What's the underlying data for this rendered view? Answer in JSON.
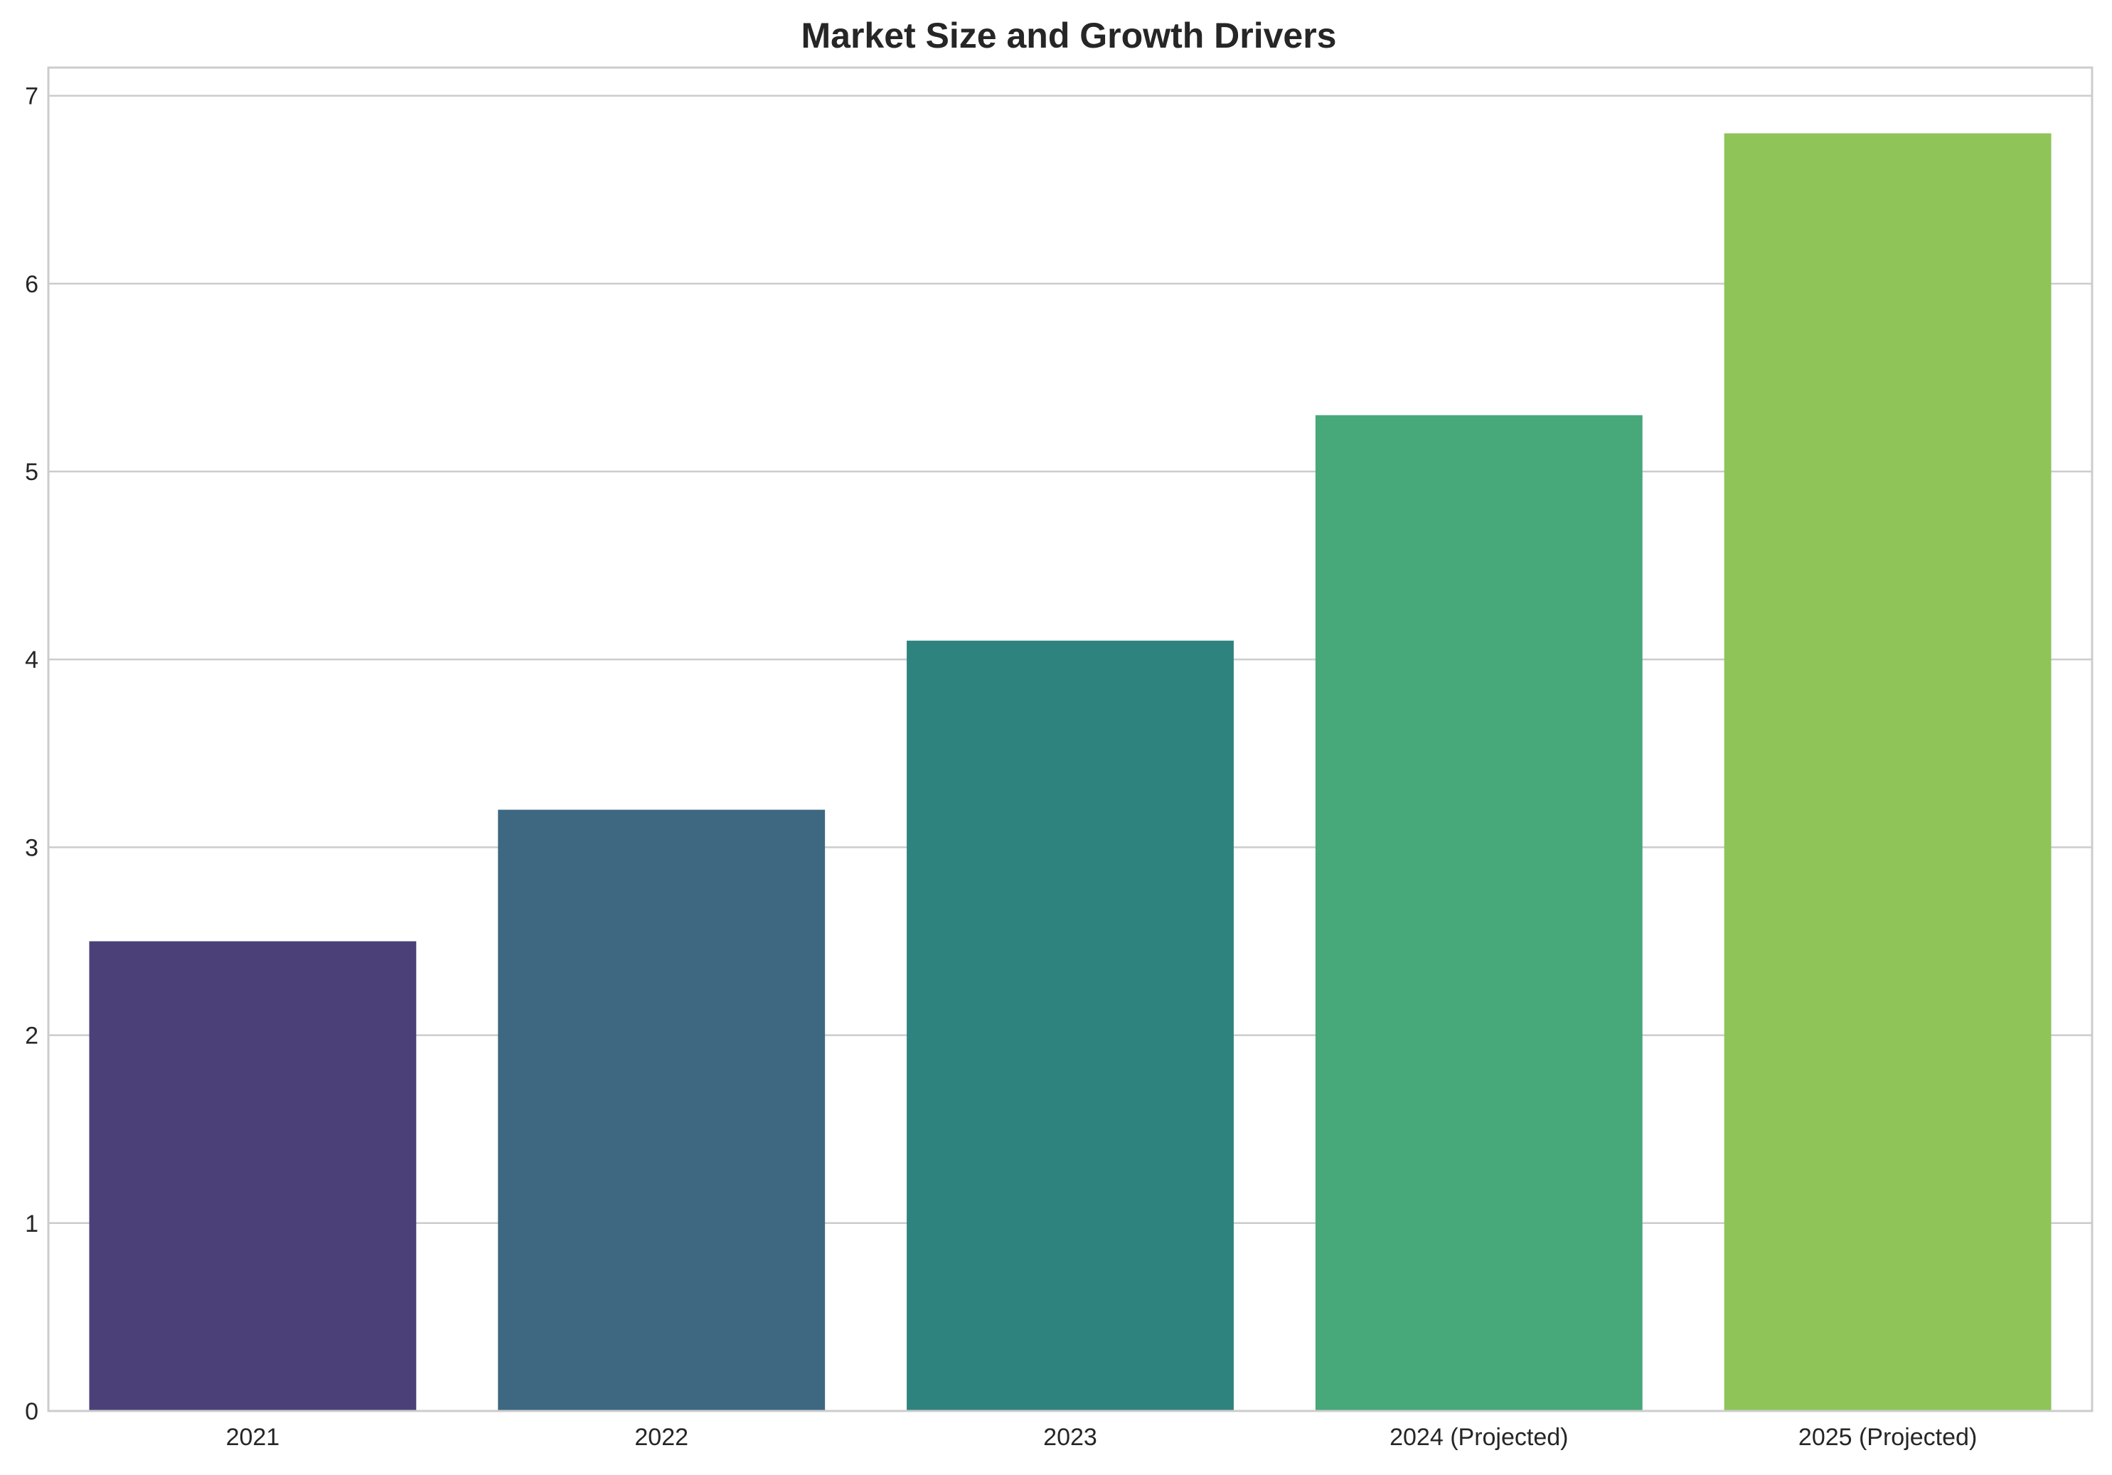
{
  "chart_data": {
    "type": "bar",
    "title": "Market Size and Growth Drivers",
    "xlabel": "",
    "ylabel": "",
    "categories": [
      "2021",
      "2022",
      "2023",
      "2024 (Projected)",
      "2025 (Projected)"
    ],
    "values": [
      2.5,
      3.2,
      4.1,
      5.3,
      6.8
    ],
    "bar_colors": [
      "#4b4178",
      "#3e6781",
      "#2e837f",
      "#47a87a",
      "#8ec458"
    ],
    "ylim": [
      0,
      7.15
    ],
    "yticks": [
      0,
      1,
      2,
      3,
      4,
      5,
      6,
      7
    ],
    "grid": "horizontal",
    "legend": "none"
  },
  "colors": {
    "grid": "#cccccc",
    "axes_edge": "#cccccc",
    "text": "#262626",
    "background": "#ffffff"
  }
}
